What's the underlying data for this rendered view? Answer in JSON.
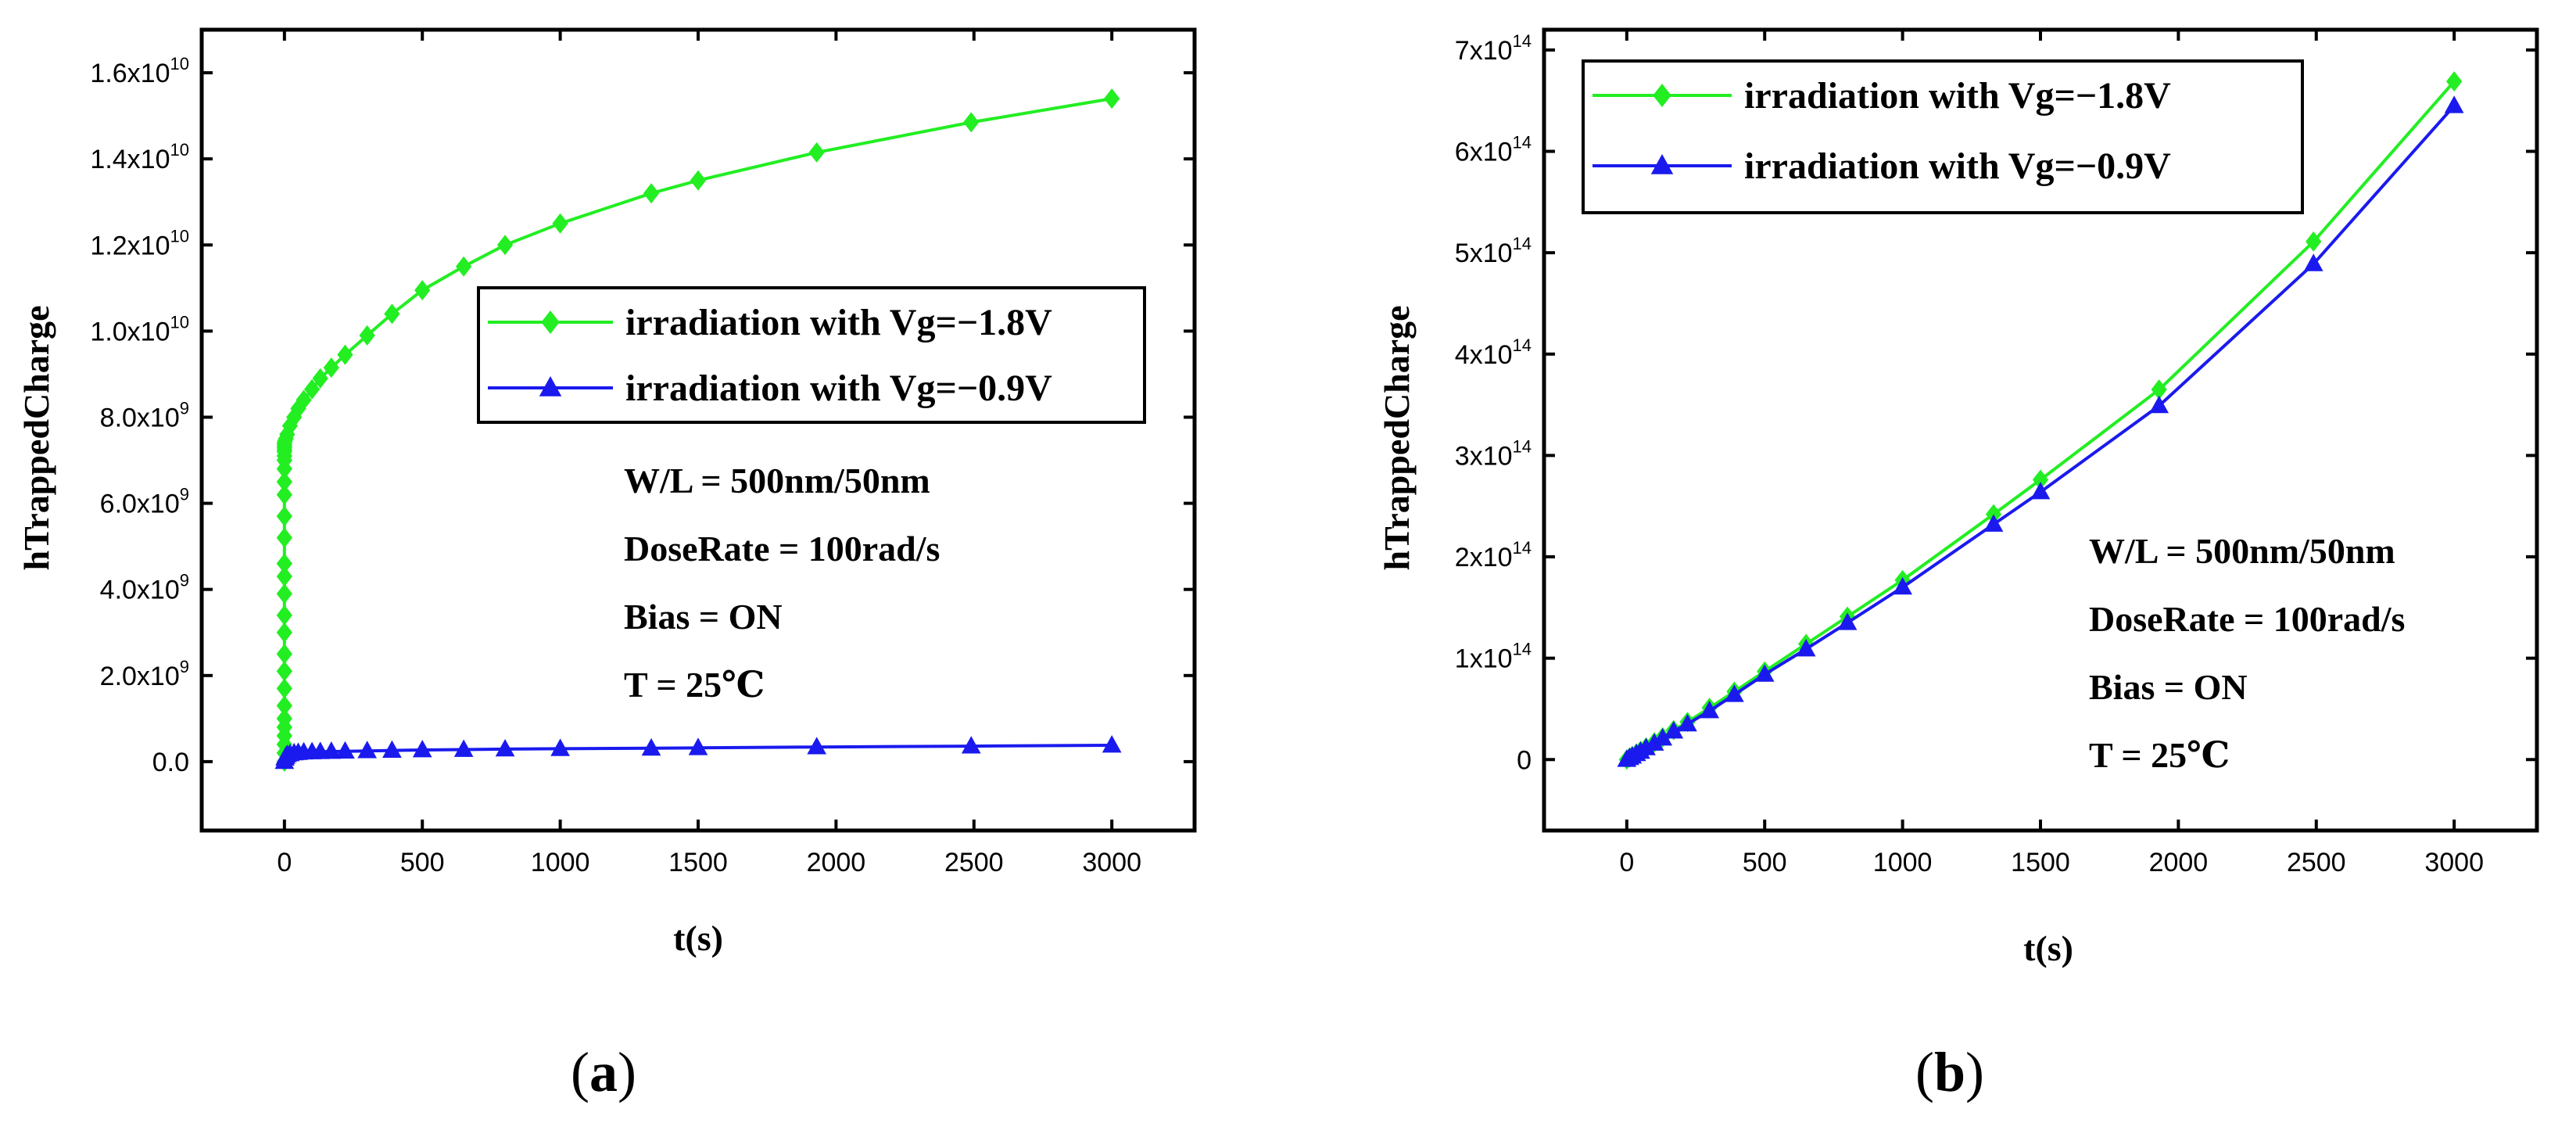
{
  "chart_data": [
    {
      "type": "line",
      "panel_label": {
        "open": "(",
        "letter": "a",
        "close": ")"
      },
      "xlabel": "t(s)",
      "ylabel": "hTrappedCharge",
      "xlim": [
        -300,
        3300
      ],
      "ylim": [
        -1600000000,
        17000000000
      ],
      "x_ticks": [
        0,
        500,
        1000,
        1500,
        2000,
        2500,
        3000
      ],
      "y_ticks": [
        {
          "value": 0,
          "mantissa": "0.0",
          "exp": ""
        },
        {
          "value": 2000000000,
          "mantissa": "2.0x10",
          "exp": "9"
        },
        {
          "value": 4000000000,
          "mantissa": "4.0x10",
          "exp": "9"
        },
        {
          "value": 6000000000,
          "mantissa": "6.0x10",
          "exp": "9"
        },
        {
          "value": 8000000000,
          "mantissa": "8.0x10",
          "exp": "9"
        },
        {
          "value": 10000000000,
          "mantissa": "1.0x10",
          "exp": "10"
        },
        {
          "value": 12000000000,
          "mantissa": "1.2x10",
          "exp": "10"
        },
        {
          "value": 14000000000,
          "mantissa": "1.4x10",
          "exp": "10"
        },
        {
          "value": 16000000000,
          "mantissa": "1.6x10",
          "exp": "10"
        }
      ],
      "legend_position": "center-right",
      "series": [
        {
          "name": "irradiation with Vg=−1.8V",
          "color": "#22ee22",
          "marker": "diamond",
          "x": [
            0,
            0,
            0,
            0,
            0,
            0,
            0,
            0,
            0,
            0,
            0,
            0,
            0,
            0,
            0,
            0,
            0,
            0,
            0,
            0,
            0,
            0,
            0,
            0,
            0,
            0,
            0,
            2,
            5,
            10,
            20,
            35,
            50,
            70,
            100,
            130,
            170,
            220,
            300,
            390,
            500,
            650,
            800,
            1000,
            1330,
            1500,
            1930,
            2490,
            3000
          ],
          "y": [
            0,
            200000000,
            400000000,
            600000000,
            800000000,
            1000000000,
            1300000000,
            1700000000,
            2100000000,
            2500000000,
            3000000000,
            3400000000,
            3900000000,
            4300000000,
            4600000000,
            5200000000,
            5700000000,
            6200000000,
            6500000000,
            6800000000,
            7000000000,
            7100000000,
            7200000000,
            7250000000,
            7300000000,
            7350000000,
            7400000000,
            7450000000,
            7500000000,
            7600000000,
            7800000000,
            8000000000,
            8200000000,
            8400000000,
            8650000000,
            8900000000,
            9150000000,
            9450000000,
            9900000000,
            10400000000,
            10950000000,
            11500000000,
            12000000000,
            12500000000,
            13200000000,
            13500000000,
            14150000000,
            14850000000,
            15400000000
          ]
        },
        {
          "name": "irradiation with Vg=−0.9V",
          "color": "#1a1aee",
          "marker": "triangle",
          "x": [
            0,
            2,
            5,
            10,
            20,
            35,
            50,
            70,
            100,
            130,
            170,
            220,
            300,
            390,
            500,
            650,
            800,
            1000,
            1330,
            1500,
            1930,
            2490,
            3000
          ],
          "y": [
            0,
            80000000,
            120000000,
            160000000,
            180000000,
            200000000,
            210000000,
            220000000,
            225000000,
            230000000,
            235000000,
            240000000,
            250000000,
            260000000,
            270000000,
            280000000,
            290000000,
            300000000,
            310000000,
            320000000,
            340000000,
            360000000,
            380000000
          ]
        }
      ],
      "annotations": [
        "W/L = 500nm/50nm",
        "DoseRate = 100rad/s",
        "Bias = ON",
        "T = 25℃"
      ]
    },
    {
      "type": "line",
      "panel_label": {
        "open": "(",
        "letter": "b",
        "close": ")"
      },
      "xlabel": "t(s)",
      "ylabel": "hTrappedCharge",
      "xlim": [
        -300,
        3300
      ],
      "ylim": [
        -70000000000000,
        720000000000000
      ],
      "x_ticks": [
        0,
        500,
        1000,
        1500,
        2000,
        2500,
        3000
      ],
      "y_ticks": [
        {
          "value": 0,
          "mantissa": "0",
          "exp": ""
        },
        {
          "value": 100000000000000,
          "mantissa": "1x10",
          "exp": "14"
        },
        {
          "value": 200000000000000,
          "mantissa": "2x10",
          "exp": "14"
        },
        {
          "value": 300000000000000,
          "mantissa": "3x10",
          "exp": "14"
        },
        {
          "value": 400000000000000,
          "mantissa": "4x10",
          "exp": "14"
        },
        {
          "value": 500000000000000,
          "mantissa": "5x10",
          "exp": "14"
        },
        {
          "value": 600000000000000,
          "mantissa": "6x10",
          "exp": "14"
        },
        {
          "value": 700000000000000,
          "mantissa": "7x10",
          "exp": "14"
        }
      ],
      "legend_position": "top-left",
      "series": [
        {
          "name": "irradiation with Vg=−1.8V",
          "color": "#22ee22",
          "marker": "diamond",
          "x": [
            0,
            10,
            20,
            35,
            50,
            70,
            100,
            130,
            170,
            220,
            300,
            390,
            500,
            650,
            800,
            1000,
            1330,
            1500,
            1930,
            2490,
            3000
          ],
          "y": [
            0,
            2000000000000,
            3500000000000,
            6000000000000,
            8500000000000,
            12000000000000,
            17000000000000,
            22000000000000,
            29000000000000,
            37000000000000,
            51000000000000,
            67000000000000,
            87000000000000,
            114000000000000,
            141000000000000,
            177000000000000,
            242000000000000,
            276000000000000,
            365000000000000,
            511000000000000,
            669000000000000
          ]
        },
        {
          "name": "irradiation with Vg=−0.9V",
          "color": "#1a1aee",
          "marker": "triangle",
          "x": [
            0,
            10,
            20,
            35,
            50,
            70,
            100,
            130,
            170,
            220,
            300,
            390,
            500,
            650,
            800,
            1000,
            1330,
            1500,
            1930,
            2490,
            3000
          ],
          "y": [
            0,
            1800000000000,
            3300000000000,
            5700000000000,
            8000000000000,
            11500000000000,
            16000000000000,
            21000000000000,
            28000000000000,
            35000000000000,
            48000000000000,
            64000000000000,
            84000000000000,
            109000000000000,
            135000000000000,
            170000000000000,
            232000000000000,
            264000000000000,
            349000000000000,
            489000000000000,
            645000000000000
          ]
        }
      ],
      "annotations": [
        "W/L = 500nm/50nm",
        "DoseRate = 100rad/s",
        "Bias = ON",
        "T = 25℃"
      ]
    }
  ]
}
